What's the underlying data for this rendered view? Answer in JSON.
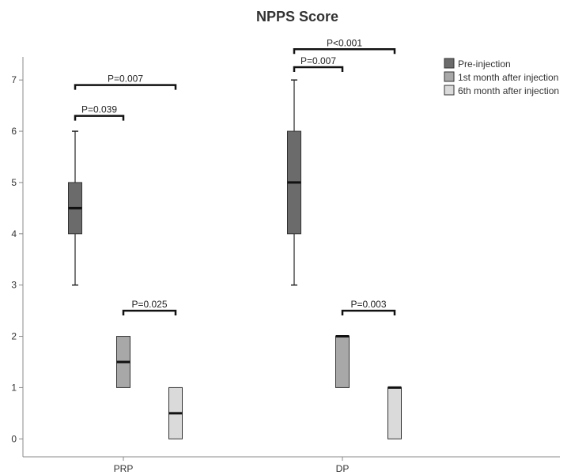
{
  "chart_data": {
    "type": "boxplot",
    "title": "NPPS Score",
    "xlabel": "",
    "ylabel": "",
    "ylim": [
      -0.35,
      7.45
    ],
    "yticks": [
      0,
      1,
      2,
      3,
      4,
      5,
      6,
      7
    ],
    "categories": [
      "PRP",
      "DP"
    ],
    "legend_position": "top-right",
    "grid": false,
    "series": [
      {
        "name": "Pre-injection",
        "color": "#6b6b6b",
        "boxes": [
          {
            "category": "PRP",
            "min": 3,
            "q1": 4,
            "median": 4.5,
            "q3": 5,
            "max": 6
          },
          {
            "category": "DP",
            "min": 3,
            "q1": 4,
            "median": 5,
            "q3": 6,
            "max": 7
          }
        ]
      },
      {
        "name": "1st month after injection",
        "color": "#a8a8a8",
        "boxes": [
          {
            "category": "PRP",
            "min": 1,
            "q1": 1,
            "median": 1.5,
            "q3": 2,
            "max": 2
          },
          {
            "category": "DP",
            "min": 1,
            "q1": 1,
            "median": 2,
            "q3": 2,
            "max": 2
          }
        ]
      },
      {
        "name": "6th month after injection",
        "color": "#dadada",
        "boxes": [
          {
            "category": "PRP",
            "min": 0,
            "q1": 0,
            "median": 0.5,
            "q3": 1,
            "max": 1
          },
          {
            "category": "DP",
            "min": 0,
            "q1": 0,
            "median": 1,
            "q3": 1,
            "max": 1
          }
        ]
      }
    ],
    "annotations": [
      {
        "category": "PRP",
        "from_series": 0,
        "to_series": 2,
        "y": 6.9,
        "text": "P=0.007"
      },
      {
        "category": "PRP",
        "from_series": 0,
        "to_series": 1,
        "y": 6.3,
        "text": "P=0.039"
      },
      {
        "category": "PRP",
        "from_series": 1,
        "to_series": 2,
        "y": 2.5,
        "text": "P=0.025"
      },
      {
        "category": "DP",
        "from_series": 0,
        "to_series": 2,
        "y": 7.6,
        "text": "P<0.001"
      },
      {
        "category": "DP",
        "from_series": 0,
        "to_series": 1,
        "y": 7.25,
        "text": "P=0.007"
      },
      {
        "category": "DP",
        "from_series": 1,
        "to_series": 2,
        "y": 2.5,
        "text": "P=0.003"
      }
    ]
  }
}
